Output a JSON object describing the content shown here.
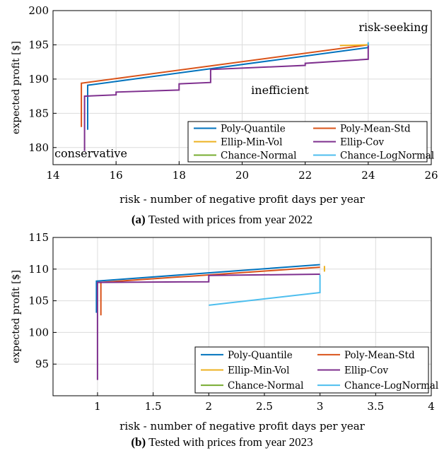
{
  "figures": [
    {
      "caption_label": "(a)",
      "caption_text": "Tested with prices from year 2022"
    },
    {
      "caption_label": "(b)",
      "caption_text": "Tested with prices from year 2023"
    }
  ],
  "chart_data": [
    {
      "type": "line",
      "xlabel": "risk - number of negative profit days per year",
      "ylabel": "expected profit [$]",
      "xlim": [
        14,
        26
      ],
      "ylim": [
        177.5,
        200
      ],
      "xticks": [
        14,
        16,
        18,
        20,
        22,
        24,
        26
      ],
      "yticks": [
        180,
        185,
        190,
        195,
        200
      ],
      "grid": true,
      "legend_position": "bottom-right",
      "legend_columns": 2,
      "annotations": [
        {
          "text": "risk-seeking",
          "x": 24.8,
          "y": 197
        },
        {
          "text": "inefficient",
          "x": 21.2,
          "y": 187.8
        },
        {
          "text": "conservative",
          "x": 15.2,
          "y": 178.6
        }
      ],
      "series": [
        {
          "name": "Poly-Quantile",
          "color": "#0072BD",
          "x": [
            15.1,
            15.1,
            24,
            24
          ],
          "y": [
            182.6,
            189.1,
            194.6,
            195.2
          ]
        },
        {
          "name": "Poly-Mean-Std",
          "color": "#D95319",
          "x": [
            14.9,
            14.9,
            24,
            24
          ],
          "y": [
            183.0,
            189.4,
            195.0,
            195.3
          ]
        },
        {
          "name": "Ellip-Min-Vol",
          "color": "#EDB120",
          "x": [
            23.1,
            24
          ],
          "y": [
            194.9,
            195.0
          ]
        },
        {
          "name": "Ellip-Cov",
          "color": "#7E2F8E",
          "x": [
            15,
            15,
            16,
            16,
            18,
            18,
            19,
            19,
            22,
            22,
            24,
            24
          ],
          "y": [
            179.5,
            187.5,
            187.7,
            188.1,
            188.4,
            189.3,
            189.5,
            191.4,
            192.0,
            192.3,
            192.9,
            195.0
          ]
        },
        {
          "name": "Chance-Normal",
          "color": "#77AC30",
          "x": [
            24,
            24
          ],
          "y": [
            195.0,
            195.2
          ]
        },
        {
          "name": "Chance-LogNormal",
          "color": "#4DBEEE",
          "x": [
            24,
            24
          ],
          "y": [
            194.9,
            195.4
          ]
        }
      ]
    },
    {
      "type": "line",
      "xlabel": "risk - number of negative profit days per year",
      "ylabel": "expected profit [$]",
      "xlim": [
        0.6,
        4
      ],
      "ylim": [
        90,
        115
      ],
      "xticks": [
        1,
        1.5,
        2,
        2.5,
        3,
        3.5,
        4
      ],
      "yticks": [
        95,
        100,
        105,
        110,
        115
      ],
      "grid": true,
      "legend_position": "bottom-right",
      "legend_columns": 2,
      "annotations": [],
      "series": [
        {
          "name": "Poly-Quantile",
          "color": "#0072BD",
          "x": [
            0.99,
            0.99,
            3,
            3
          ],
          "y": [
            103.1,
            108.1,
            110.7,
            110.7
          ]
        },
        {
          "name": "Poly-Mean-Std",
          "color": "#D95319",
          "x": [
            1.03,
            1.03,
            3,
            3
          ],
          "y": [
            102.7,
            107.9,
            110.3,
            110.3
          ]
        },
        {
          "name": "Ellip-Min-Vol",
          "color": "#EDB120",
          "x": [
            3.04,
            3.04
          ],
          "y": [
            109.6,
            110.5
          ]
        },
        {
          "name": "Ellip-Cov",
          "color": "#7E2F8E",
          "x": [
            1.0,
            1.0,
            2.0,
            2.0,
            3.0,
            3.0
          ],
          "y": [
            92.5,
            107.9,
            108.0,
            109.0,
            109.2,
            109.2
          ]
        },
        {
          "name": "Chance-Normal",
          "color": "#77AC30",
          "x": [],
          "y": []
        },
        {
          "name": "Chance-LogNormal",
          "color": "#4DBEEE",
          "x": [
            2.0,
            3.0,
            3.0
          ],
          "y": [
            104.3,
            106.3,
            109.1
          ]
        }
      ]
    }
  ]
}
